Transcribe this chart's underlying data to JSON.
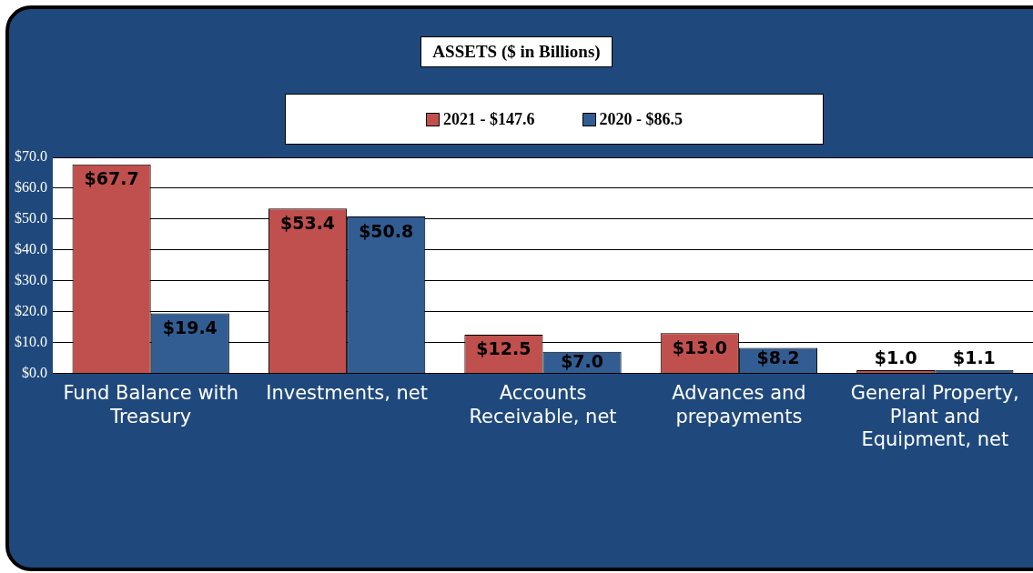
{
  "chart_data": {
    "type": "bar",
    "title": "ASSETS ($ in Billions)",
    "categories": [
      "Fund Balance with Treasury",
      "Investments, net",
      "Accounts Receivable, net",
      "Advances and prepayments",
      "General Property, Plant and Equipment, net"
    ],
    "series": [
      {
        "name": "2021 - $147.6",
        "color": "#c0504d",
        "values": [
          67.7,
          53.4,
          12.5,
          13.0,
          1.0
        ],
        "value_labels": [
          "$67.7",
          "$53.4",
          "$12.5",
          "$13.0",
          "$1.0"
        ]
      },
      {
        "name": "2020 - $86.5",
        "color": "#325d92",
        "values": [
          19.4,
          50.8,
          7.0,
          8.2,
          1.1
        ],
        "value_labels": [
          "$19.4",
          "$50.8",
          "$7.0",
          "$8.2",
          "$1.1"
        ]
      }
    ],
    "ylim": [
      0,
      70
    ],
    "yticks": [
      {
        "value": 0,
        "label": "$0.0"
      },
      {
        "value": 10,
        "label": "$10.0"
      },
      {
        "value": 20,
        "label": "$20.0"
      },
      {
        "value": 30,
        "label": "$30.0"
      },
      {
        "value": 40,
        "label": "$40.0"
      },
      {
        "value": 50,
        "label": "$50.0"
      },
      {
        "value": 60,
        "label": "$60.0"
      },
      {
        "value": 70,
        "label": "$70.0"
      }
    ],
    "grid": "y",
    "legend": "top"
  }
}
